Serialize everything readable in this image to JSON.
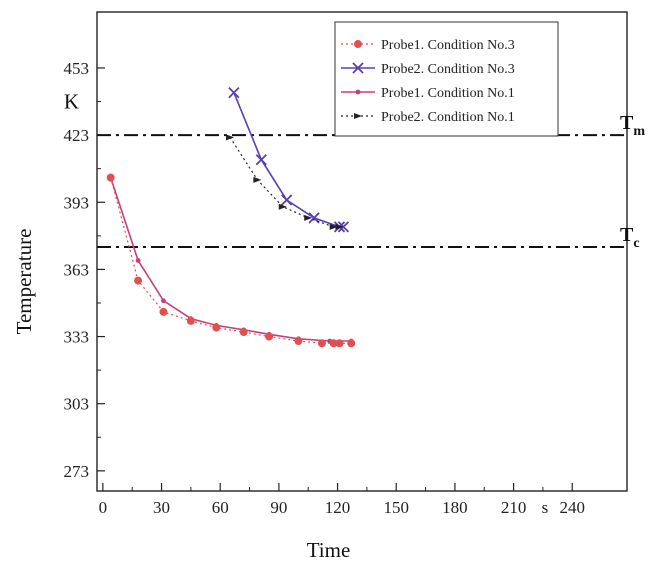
{
  "chart_data": {
    "type": "line",
    "xlabel": "Time",
    "x_unit": "s",
    "ylabel": "Temperature",
    "y_unit": "K",
    "xlim": [
      -3,
      268
    ],
    "ylim": [
      264,
      478
    ],
    "x_ticks": [
      0,
      30,
      60,
      90,
      120,
      150,
      180,
      210,
      240
    ],
    "y_ticks": [
      273,
      303,
      333,
      363,
      393,
      423,
      453
    ],
    "grid": false,
    "legend_position": "top-right",
    "series": [
      {
        "name": "Probe1. Condition No.3",
        "color": "#e05050",
        "line_style": "dotted",
        "marker": "circle",
        "points": [
          [
            4,
            404
          ],
          [
            18,
            358
          ],
          [
            31,
            344
          ],
          [
            45,
            340
          ],
          [
            58,
            337
          ],
          [
            72,
            335
          ],
          [
            85,
            333
          ],
          [
            100,
            331
          ],
          [
            112,
            330
          ],
          [
            118,
            330
          ],
          [
            121,
            330
          ],
          [
            127,
            330
          ]
        ]
      },
      {
        "name": "Probe2. Condition No.3",
        "color": "#5a3fb0",
        "line_style": "solid",
        "marker": "x",
        "points": [
          [
            67,
            442
          ],
          [
            81,
            412
          ],
          [
            94,
            394
          ],
          [
            108,
            386
          ],
          [
            121,
            382
          ],
          [
            123,
            382
          ]
        ]
      },
      {
        "name": "Probe1. Condition No.1",
        "color": "#c8407a",
        "line_style": "solid",
        "marker": "dot",
        "points": [
          [
            4,
            404
          ],
          [
            18,
            367
          ],
          [
            31,
            349
          ],
          [
            45,
            341
          ],
          [
            58,
            338
          ],
          [
            72,
            336
          ],
          [
            85,
            334
          ],
          [
            100,
            332
          ],
          [
            116,
            331
          ],
          [
            127,
            331
          ]
        ]
      },
      {
        "name": "Probe2. Condition No.1",
        "color": "#222222",
        "line_style": "dotted",
        "marker": "arrow",
        "points": [
          [
            65,
            422
          ],
          [
            79,
            403
          ],
          [
            92,
            391
          ],
          [
            105,
            386
          ],
          [
            118,
            382
          ],
          [
            121,
            382
          ]
        ]
      }
    ],
    "reference_lines": [
      {
        "label": "T",
        "subscript": "m",
        "y": 423
      },
      {
        "label": "T",
        "subscript": "c",
        "y": 373
      }
    ]
  }
}
